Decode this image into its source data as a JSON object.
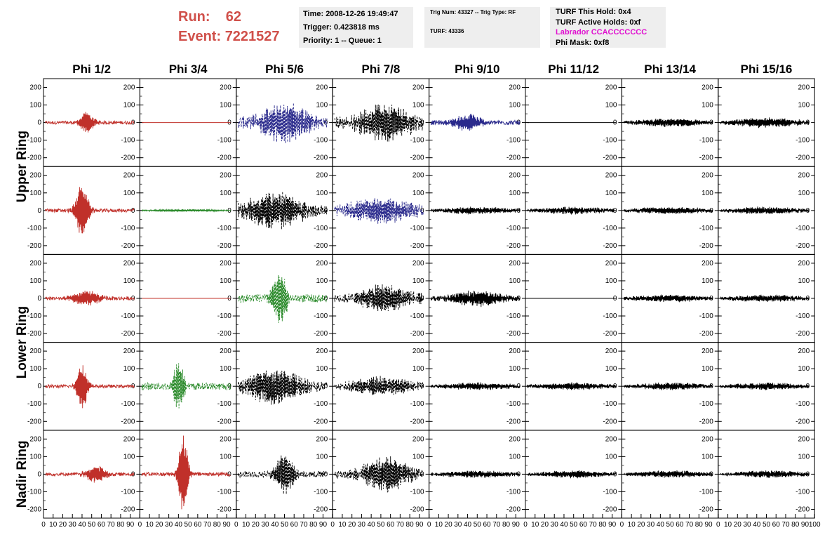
{
  "run_label": "Run:",
  "run_value": "62",
  "event_label": "Event:",
  "event_value": "7221527",
  "info_time": "Time: 2008-12-26 19:49:47",
  "info_trigger": "Trigger: 0.423818 ms",
  "info_priority": "Priority: 1 -- Queue: 1",
  "trig_num": "Trig Num: 43327 -- Trig Type: RF",
  "turf": "TURF: 43336",
  "turf_this_hold": "TURF This Hold: 0x4",
  "turf_active_holds": "TURF Active Holds: 0xf",
  "labrador": "Labrador CCACCCCCCC",
  "phi_mask": "Phi Mask: 0xf8",
  "colors": {
    "title": "#d0504a",
    "red": "#c0302a",
    "green": "#2a8a2a",
    "blue": "#2a2a8c",
    "black": "#000000",
    "magenta": "#e010d0",
    "info_bg": "#eeeeee"
  },
  "chart_data": {
    "type": "line",
    "columns": [
      "Phi 1/2",
      "Phi 3/4",
      "Phi 5/6",
      "Phi 7/8",
      "Phi 9/10",
      "Phi 11/12",
      "Phi 13/14",
      "Phi 15/16"
    ],
    "rows": [
      "Upper Ring",
      "Upper Ring",
      "Lower Ring",
      "Lower Ring",
      "Nadir Ring"
    ],
    "row_labels": [
      "Upper Ring",
      "Lower Ring",
      "Nadir Ring"
    ],
    "xlim": [
      0,
      100
    ],
    "x_ticks": [
      "0",
      "10",
      "20",
      "30",
      "40",
      "50",
      "60",
      "70",
      "80",
      "90",
      "100"
    ],
    "ylim": [
      -250,
      250
    ],
    "y_ticks": [
      "200",
      "100",
      "0",
      "-100",
      "-200"
    ],
    "panels": [
      [
        {
          "style": "solid",
          "color": "red",
          "amp": 60,
          "peak": 45,
          "width": 8,
          "noise": 18
        },
        {
          "style": "flat",
          "color": "red"
        },
        {
          "style": "dashed",
          "color": "blue",
          "amp": 110,
          "peak": 50,
          "width": 25,
          "noise": 60
        },
        {
          "style": "dashed",
          "color": "black",
          "amp": 90,
          "peak": 55,
          "width": 30,
          "noise": 60
        },
        {
          "style": "solid",
          "color": "blue",
          "amp": 45,
          "peak": 40,
          "width": 15,
          "noise": 25
        },
        {
          "style": "flat",
          "color": "black"
        },
        {
          "style": "solid",
          "color": "black",
          "amp": 20,
          "peak": 50,
          "width": 40,
          "noise": 12
        },
        {
          "style": "solid",
          "color": "black",
          "amp": 25,
          "peak": 50,
          "width": 40,
          "noise": 14
        }
      ],
      [
        {
          "style": "solid",
          "color": "red",
          "amp": 150,
          "peak": 40,
          "width": 7,
          "noise": 20
        },
        {
          "style": "solid",
          "color": "green",
          "amp": 6,
          "peak": 50,
          "width": 40,
          "noise": 4
        },
        {
          "style": "dashed",
          "color": "black",
          "amp": 95,
          "peak": 40,
          "width": 30,
          "noise": 55
        },
        {
          "style": "dashed",
          "color": "blue",
          "amp": 65,
          "peak": 50,
          "width": 35,
          "noise": 45
        },
        {
          "style": "solid",
          "color": "black",
          "amp": 18,
          "peak": 50,
          "width": 40,
          "noise": 12
        },
        {
          "style": "solid",
          "color": "black",
          "amp": 18,
          "peak": 50,
          "width": 40,
          "noise": 12
        },
        {
          "style": "solid",
          "color": "black",
          "amp": 18,
          "peak": 50,
          "width": 40,
          "noise": 12
        },
        {
          "style": "solid",
          "color": "black",
          "amp": 18,
          "peak": 50,
          "width": 40,
          "noise": 12
        }
      ],
      [
        {
          "style": "solid",
          "color": "red",
          "amp": 40,
          "peak": 45,
          "width": 15,
          "noise": 20
        },
        {
          "style": "flat",
          "color": "red"
        },
        {
          "style": "dashed",
          "color": "green",
          "amp": 150,
          "peak": 45,
          "width": 8,
          "noise": 45
        },
        {
          "style": "dashed",
          "color": "black",
          "amp": 70,
          "peak": 55,
          "width": 30,
          "noise": 40
        },
        {
          "style": "solid",
          "color": "black",
          "amp": 40,
          "peak": 50,
          "width": 30,
          "noise": 22
        },
        {
          "style": "flat",
          "color": "black"
        },
        {
          "style": "solid",
          "color": "black",
          "amp": 18,
          "peak": 50,
          "width": 40,
          "noise": 12
        },
        {
          "style": "solid",
          "color": "black",
          "amp": 18,
          "peak": 50,
          "width": 40,
          "noise": 12
        }
      ],
      [
        {
          "style": "solid",
          "color": "red",
          "amp": 125,
          "peak": 40,
          "width": 6,
          "noise": 18
        },
        {
          "style": "dashed",
          "color": "green",
          "amp": 140,
          "peak": 40,
          "width": 6,
          "noise": 40
        },
        {
          "style": "dashed",
          "color": "black",
          "amp": 90,
          "peak": 40,
          "width": 30,
          "noise": 50
        },
        {
          "style": "dashed",
          "color": "black",
          "amp": 45,
          "peak": 50,
          "width": 35,
          "noise": 30
        },
        {
          "style": "solid",
          "color": "black",
          "amp": 18,
          "peak": 50,
          "width": 40,
          "noise": 12
        },
        {
          "style": "solid",
          "color": "black",
          "amp": 18,
          "peak": 50,
          "width": 40,
          "noise": 12
        },
        {
          "style": "solid",
          "color": "black",
          "amp": 18,
          "peak": 50,
          "width": 40,
          "noise": 12
        },
        {
          "style": "solid",
          "color": "black",
          "amp": 18,
          "peak": 50,
          "width": 40,
          "noise": 12
        }
      ],
      [
        {
          "style": "solid",
          "color": "red",
          "amp": 45,
          "peak": 55,
          "width": 12,
          "noise": 18
        },
        {
          "style": "solid",
          "color": "red",
          "amp": 240,
          "peak": 45,
          "width": 5,
          "noise": 22
        },
        {
          "style": "dashed",
          "color": "black",
          "amp": 110,
          "peak": 50,
          "width": 10,
          "noise": 35
        },
        {
          "style": "dashed",
          "color": "black",
          "amp": 90,
          "peak": 55,
          "width": 25,
          "noise": 45
        },
        {
          "style": "solid",
          "color": "black",
          "amp": 18,
          "peak": 50,
          "width": 40,
          "noise": 12
        },
        {
          "style": "solid",
          "color": "black",
          "amp": 18,
          "peak": 50,
          "width": 40,
          "noise": 12
        },
        {
          "style": "solid",
          "color": "black",
          "amp": 18,
          "peak": 50,
          "width": 40,
          "noise": 12
        },
        {
          "style": "solid",
          "color": "black",
          "amp": 18,
          "peak": 50,
          "width": 40,
          "noise": 12
        }
      ]
    ]
  }
}
